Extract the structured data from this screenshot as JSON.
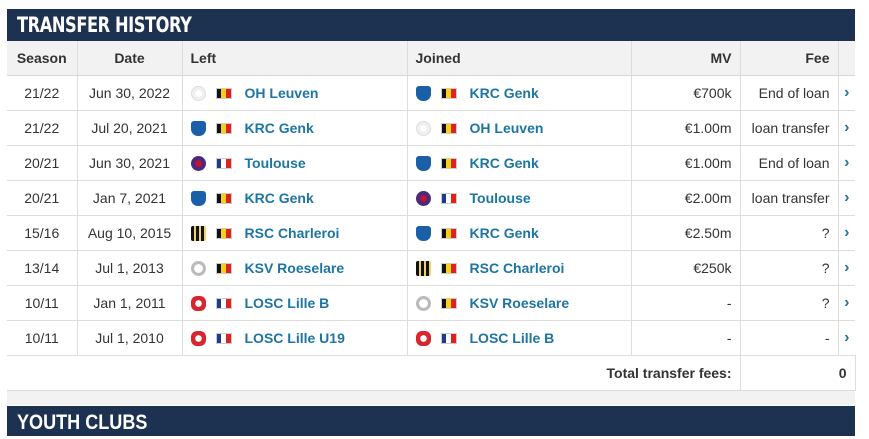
{
  "section_title": "TRANSFER HISTORY",
  "next_section_title": "YOUTH CLUBS",
  "headers": {
    "season": "Season",
    "date": "Date",
    "left": "Left",
    "joined": "Joined",
    "mv": "MV",
    "fee": "Fee"
  },
  "colors": {
    "header_bg": "#1d3150",
    "link": "#1d75a3"
  },
  "rows": [
    {
      "season": "21/22",
      "date": "Jun 30, 2022",
      "left": {
        "name": "OH Leuven",
        "flag": "belgium",
        "crest": "oh-leuven-crest"
      },
      "joined": {
        "name": "KRC Genk",
        "flag": "belgium",
        "crest": "krc-genk-crest"
      },
      "mv": "€700k",
      "fee": "End of loan"
    },
    {
      "season": "21/22",
      "date": "Jul 20, 2021",
      "left": {
        "name": "KRC Genk",
        "flag": "belgium",
        "crest": "krc-genk-crest"
      },
      "joined": {
        "name": "OH Leuven",
        "flag": "belgium",
        "crest": "oh-leuven-crest"
      },
      "mv": "€1.00m",
      "fee": "loan transfer"
    },
    {
      "season": "20/21",
      "date": "Jun 30, 2021",
      "left": {
        "name": "Toulouse",
        "flag": "france",
        "crest": "toulouse-crest"
      },
      "joined": {
        "name": "KRC Genk",
        "flag": "belgium",
        "crest": "krc-genk-crest"
      },
      "mv": "€1.00m",
      "fee": "End of loan"
    },
    {
      "season": "20/21",
      "date": "Jan 7, 2021",
      "left": {
        "name": "KRC Genk",
        "flag": "belgium",
        "crest": "krc-genk-crest"
      },
      "joined": {
        "name": "Toulouse",
        "flag": "france",
        "crest": "toulouse-crest"
      },
      "mv": "€2.00m",
      "fee": "loan transfer"
    },
    {
      "season": "15/16",
      "date": "Aug 10, 2015",
      "left": {
        "name": "RSC Charleroi",
        "flag": "belgium",
        "crest": "rsc-charleroi-crest"
      },
      "joined": {
        "name": "KRC Genk",
        "flag": "belgium",
        "crest": "krc-genk-crest"
      },
      "mv": "€2.50m",
      "fee": "?"
    },
    {
      "season": "13/14",
      "date": "Jul 1, 2013",
      "left": {
        "name": "KSV Roeselare",
        "flag": "belgium",
        "crest": "ksv-roeselare-crest"
      },
      "joined": {
        "name": "RSC Charleroi",
        "flag": "belgium",
        "crest": "rsc-charleroi-crest"
      },
      "mv": "€250k",
      "fee": "?"
    },
    {
      "season": "10/11",
      "date": "Jan 1, 2011",
      "left": {
        "name": "LOSC Lille B",
        "flag": "france",
        "crest": "losc-crest"
      },
      "joined": {
        "name": "KSV Roeselare",
        "flag": "belgium",
        "crest": "ksv-roeselare-crest"
      },
      "mv": "-",
      "fee": "?"
    },
    {
      "season": "10/11",
      "date": "Jul 1, 2010",
      "left": {
        "name": "LOSC Lille U19",
        "flag": "france",
        "crest": "losc-crest"
      },
      "joined": {
        "name": "LOSC Lille B",
        "flag": "france",
        "crest": "losc-crest"
      },
      "mv": "-",
      "fee": "-"
    }
  ],
  "total": {
    "label": "Total transfer fees:",
    "value": "0"
  }
}
